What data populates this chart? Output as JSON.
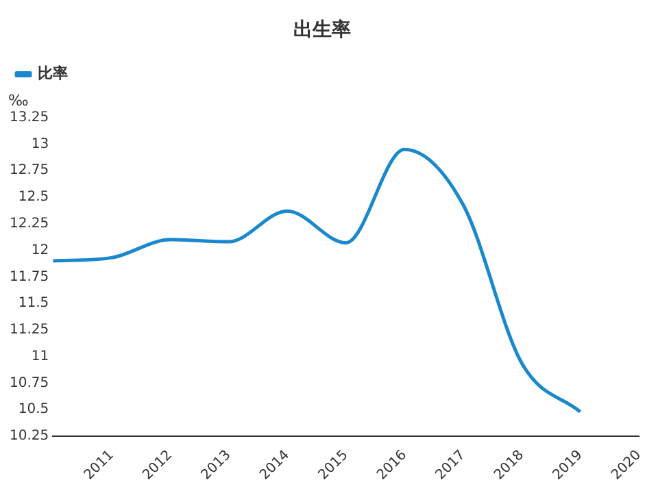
{
  "chart_data": {
    "type": "line",
    "title": "出生率",
    "ylabel": "‰",
    "x": [
      2010,
      2011,
      2012,
      2013,
      2014,
      2015,
      2016,
      2017,
      2018,
      2019
    ],
    "series": [
      {
        "name": "比率",
        "color": "#1a88cc",
        "values": [
          11.9,
          11.93,
          12.1,
          12.08,
          12.37,
          12.07,
          12.95,
          12.43,
          10.94,
          10.48
        ]
      }
    ],
    "xlim": [
      2010,
      2020
    ],
    "xticks": [
      2011,
      2012,
      2013,
      2014,
      2015,
      2016,
      2017,
      2018,
      2019,
      2020
    ],
    "ylim": [
      10.25,
      13.25
    ],
    "yticks": [
      10.25,
      10.5,
      10.75,
      11,
      11.25,
      11.5,
      11.75,
      12,
      12.25,
      12.5,
      12.75,
      13,
      13.25
    ],
    "grid": false,
    "legend": "top left"
  }
}
